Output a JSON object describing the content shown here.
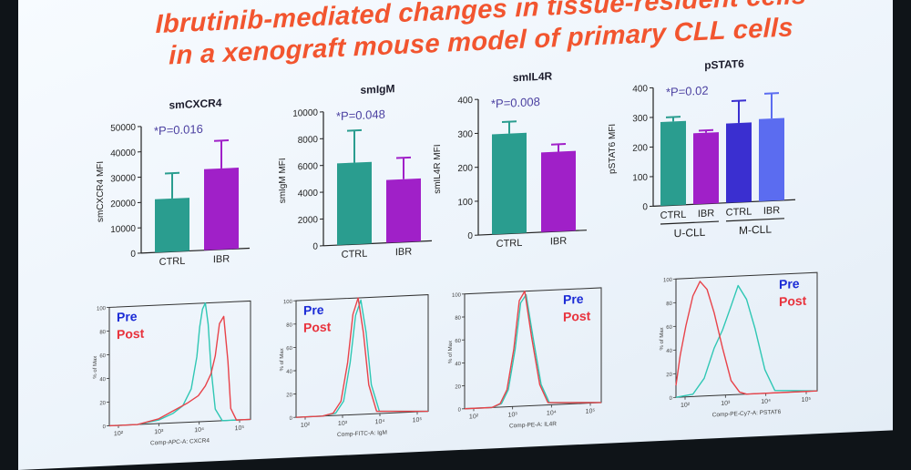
{
  "slide": {
    "title_line1": "Ibrutinib-mediated changes in tissue-resident cells",
    "title_line2": "in a xenograft mouse model of primary CLL cells"
  },
  "colors": {
    "title": "#f2552f",
    "ctrl_bar": "#2a9d8f",
    "ibr_bar": "#a020c8",
    "mcll_ctrl_bar": "#3a2fd0",
    "mcll_ibr_bar": "#5b6cf0",
    "pre_curve": "#2fc7b4",
    "post_curve": "#e8434a",
    "pre_text": "#1b2bd6",
    "post_text": "#e8333d"
  },
  "chart_data": [
    {
      "type": "bar",
      "title": "smCXCR4",
      "ylabel": "smCXCR4 MFI",
      "ylim": [
        0,
        50000
      ],
      "yticks": [
        "0",
        "10000",
        "20000",
        "30000",
        "40000",
        "50000"
      ],
      "categories": [
        "CTRL",
        "IBR"
      ],
      "values": [
        21000,
        32000
      ],
      "errors": [
        10000,
        11000
      ],
      "annotation": "*P=0.016"
    },
    {
      "type": "bar",
      "title": "smIgM",
      "ylabel": "smIgM MFI",
      "ylim": [
        0,
        10000
      ],
      "yticks": [
        "0",
        "2000",
        "4000",
        "6000",
        "8000",
        "10000"
      ],
      "categories": [
        "CTRL",
        "IBR"
      ],
      "values": [
        6100,
        4700
      ],
      "errors": [
        2400,
        1600
      ],
      "annotation": "*P=0.048"
    },
    {
      "type": "bar",
      "title": "smIL4R",
      "ylabel": "smIL4R MFI",
      "ylim": [
        0,
        400
      ],
      "yticks": [
        "0",
        "100",
        "200",
        "300",
        "400"
      ],
      "categories": [
        "CTRL",
        "IBR"
      ],
      "values": [
        295,
        235
      ],
      "errors": [
        35,
        22
      ],
      "annotation": "*P=0.008"
    },
    {
      "type": "bar",
      "title": "pSTAT6",
      "ylabel": "pSTAT6 MFI",
      "ylim": [
        0,
        400
      ],
      "yticks": [
        "0",
        "100",
        "200",
        "300",
        "400"
      ],
      "categories": [
        "CTRL",
        "IBR",
        "CTRL",
        "IBR"
      ],
      "groups": [
        "U-CLL",
        "M-CLL"
      ],
      "values": [
        283,
        240,
        268,
        278
      ],
      "errors": [
        15,
        8,
        75,
        85
      ],
      "annotation": "*P=0.02"
    },
    {
      "type": "line",
      "xlabel": "Comp-APC-A: CXCR4",
      "ylabel": "% of Max",
      "yticks": [
        "0",
        "20",
        "40",
        "60",
        "80",
        "100"
      ],
      "xticks": [
        "10²",
        "10³",
        "10⁴",
        "10⁵"
      ],
      "series": [
        {
          "name": "Pre",
          "x": [
            0.0,
            0.2,
            0.35,
            0.45,
            0.52,
            0.58,
            0.62,
            0.64,
            0.66,
            0.68,
            0.7,
            0.72,
            0.75,
            0.8,
            1.0
          ],
          "y": [
            0,
            0,
            3,
            8,
            14,
            28,
            55,
            80,
            95,
            100,
            82,
            45,
            10,
            0,
            0
          ]
        },
        {
          "name": "Post",
          "x": [
            0.0,
            0.2,
            0.35,
            0.45,
            0.55,
            0.63,
            0.68,
            0.72,
            0.75,
            0.78,
            0.81,
            0.84,
            0.86,
            0.9,
            1.0
          ],
          "y": [
            0,
            0,
            4,
            10,
            16,
            22,
            30,
            40,
            55,
            82,
            88,
            50,
            10,
            0,
            0
          ]
        }
      ]
    },
    {
      "type": "line",
      "xlabel": "Comp-FITC-A: IgM",
      "ylabel": "% of Max",
      "yticks": [
        "0",
        "20",
        "40",
        "60",
        "80",
        "100"
      ],
      "xticks": [
        "10²",
        "10³",
        "10⁴",
        "10⁵"
      ],
      "series": [
        {
          "name": "Pre",
          "x": [
            0.0,
            0.2,
            0.3,
            0.36,
            0.41,
            0.45,
            0.49,
            0.53,
            0.57,
            0.63,
            1.0
          ],
          "y": [
            0,
            0,
            2,
            12,
            45,
            85,
            98,
            70,
            25,
            2,
            0
          ]
        },
        {
          "name": "Post",
          "x": [
            0.0,
            0.2,
            0.28,
            0.34,
            0.39,
            0.43,
            0.47,
            0.51,
            0.55,
            0.61,
            1.0
          ],
          "y": [
            0,
            0,
            2,
            12,
            45,
            86,
            100,
            70,
            25,
            2,
            0
          ]
        }
      ]
    },
    {
      "type": "line",
      "xlabel": "Comp-PE-A: IL4R",
      "ylabel": "% of Max",
      "yticks": [
        "0",
        "20",
        "40",
        "60",
        "80",
        "100"
      ],
      "xticks": [
        "10²",
        "10³",
        "10⁴",
        "10⁵"
      ],
      "series": [
        {
          "name": "Pre",
          "x": [
            0.0,
            0.2,
            0.27,
            0.32,
            0.37,
            0.41,
            0.45,
            0.5,
            0.56,
            0.62,
            1.0
          ],
          "y": [
            0,
            0,
            3,
            15,
            50,
            90,
            97,
            60,
            18,
            2,
            0
          ]
        },
        {
          "name": "Post",
          "x": [
            0.0,
            0.2,
            0.26,
            0.31,
            0.36,
            0.4,
            0.44,
            0.49,
            0.55,
            0.61,
            1.0
          ],
          "y": [
            0,
            0,
            3,
            15,
            50,
            92,
            100,
            60,
            18,
            2,
            0
          ]
        }
      ]
    },
    {
      "type": "line",
      "xlabel": "Comp-PE-Cy7-A: PSTAT6",
      "ylabel": "% of Max",
      "yticks": [
        "0",
        "20",
        "40",
        "60",
        "80",
        "100"
      ],
      "xticks": [
        "10²",
        "10³",
        "10⁴",
        "10⁵"
      ],
      "series": [
        {
          "name": "Pre",
          "x": [
            0.0,
            0.12,
            0.2,
            0.27,
            0.33,
            0.39,
            0.44,
            0.5,
            0.56,
            0.63,
            0.7,
            1.0
          ],
          "y": [
            0,
            2,
            15,
            40,
            55,
            75,
            92,
            80,
            55,
            20,
            2,
            0
          ]
        },
        {
          "name": "Post",
          "x": [
            0.0,
            0.03,
            0.07,
            0.12,
            0.17,
            0.22,
            0.27,
            0.33,
            0.39,
            0.45,
            0.5,
            1.0
          ],
          "y": [
            10,
            35,
            60,
            85,
            97,
            90,
            70,
            40,
            12,
            2,
            0,
            0
          ]
        }
      ]
    }
  ]
}
